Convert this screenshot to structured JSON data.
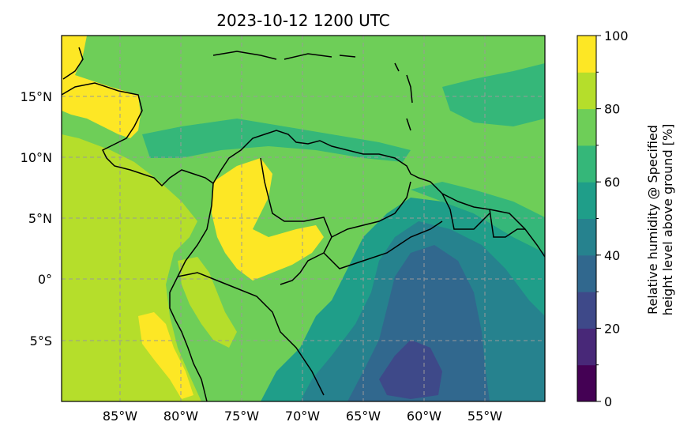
{
  "title": "2023-10-12 1200 UTC",
  "lon_ticks": [
    "85°W",
    "80°W",
    "75°W",
    "70°W",
    "65°W",
    "60°W",
    "55°W"
  ],
  "lat_ticks": [
    "15°N",
    "10°N",
    "5°N",
    "0°",
    "5°S"
  ],
  "colorbar": {
    "label_line1": "Relative humidity @ Specified",
    "label_line2": "height level above ground [%]",
    "tick_labels": [
      "0",
      "20",
      "40",
      "60",
      "80",
      "100"
    ],
    "levels": [
      0,
      10,
      20,
      30,
      40,
      50,
      60,
      70,
      80,
      90,
      100
    ],
    "colors": [
      "#440154",
      "#482878",
      "#3e4989",
      "#31688e",
      "#26828e",
      "#1f9e89",
      "#35b779",
      "#6ece58",
      "#b5de2b",
      "#fde725"
    ]
  },
  "map": {
    "extent": {
      "lon_min": -90,
      "lon_max": -50,
      "lat_min": -10,
      "lat_max": 20
    },
    "background_color": "#6ece58",
    "grid": true
  }
}
